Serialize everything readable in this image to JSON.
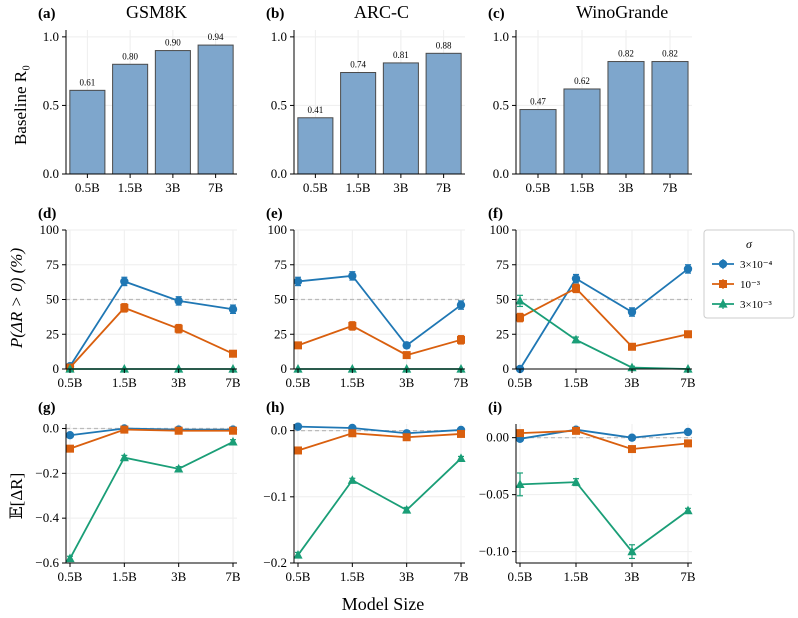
{
  "figure": {
    "xlabel": "Model Size",
    "row_ylabels": [
      "Baseline R₀",
      "P(ΔR > 0) (%)",
      "𝔼[ΔR]"
    ]
  },
  "legend": {
    "title": "σ",
    "entries": [
      "3×10⁻⁴",
      "10⁻³",
      "3×10⁻³"
    ]
  },
  "colors": {
    "bar": "#7ea6cc",
    "s0": "#1f77b4",
    "s1": "#d95f0e",
    "s2": "#1a9e77",
    "ref": "#bbbbbb"
  },
  "chart_data": [
    {
      "panel": "(a)",
      "title": "GSM8K",
      "type": "bar",
      "categories": [
        "0.5B",
        "1.5B",
        "3B",
        "7B"
      ],
      "values": [
        0.61,
        0.8,
        0.9,
        0.94
      ],
      "value_labels": [
        "0.61",
        "0.80",
        "0.90",
        "0.94"
      ],
      "ylim": [
        0,
        1.05
      ],
      "yticks": [
        0,
        0.5,
        1.0
      ],
      "ytick_labels": [
        "0.0",
        "0.5",
        "1.0"
      ]
    },
    {
      "panel": "(b)",
      "title": "ARC-C",
      "type": "bar",
      "categories": [
        "0.5B",
        "1.5B",
        "3B",
        "7B"
      ],
      "values": [
        0.41,
        0.74,
        0.81,
        0.88
      ],
      "value_labels": [
        "0.41",
        "0.74",
        "0.81",
        "0.88"
      ],
      "ylim": [
        0,
        1.05
      ],
      "yticks": [
        0,
        0.5,
        1.0
      ],
      "ytick_labels": [
        "0.0",
        "0.5",
        "1.0"
      ]
    },
    {
      "panel": "(c)",
      "title": "WinoGrande",
      "type": "bar",
      "categories": [
        "0.5B",
        "1.5B",
        "3B",
        "7B"
      ],
      "values": [
        0.47,
        0.62,
        0.82,
        0.82
      ],
      "value_labels": [
        "0.47",
        "0.62",
        "0.82",
        "0.82"
      ],
      "ylim": [
        0,
        1.05
      ],
      "yticks": [
        0,
        0.5,
        1.0
      ],
      "ytick_labels": [
        "0.0",
        "0.5",
        "1.0"
      ]
    },
    {
      "panel": "(d)",
      "type": "line",
      "categories": [
        "0.5B",
        "1.5B",
        "3B",
        "7B"
      ],
      "ylim": [
        0,
        100
      ],
      "yticks": [
        0,
        25,
        50,
        75,
        100
      ],
      "ytick_labels": [
        "0",
        "25",
        "50",
        "75",
        "100"
      ],
      "hline": 50,
      "series": [
        {
          "name": "3×10⁻⁴",
          "values": [
            2,
            63,
            49,
            43
          ],
          "err": [
            1,
            3,
            3,
            3
          ]
        },
        {
          "name": "10⁻³",
          "values": [
            1,
            44,
            29,
            11
          ],
          "err": [
            1,
            3,
            3,
            2
          ]
        },
        {
          "name": "3×10⁻³",
          "values": [
            0,
            0,
            0,
            0
          ],
          "err": [
            0,
            0,
            0,
            0
          ]
        }
      ]
    },
    {
      "panel": "(e)",
      "type": "line",
      "categories": [
        "0.5B",
        "1.5B",
        "3B",
        "7B"
      ],
      "ylim": [
        0,
        100
      ],
      "yticks": [
        0,
        25,
        50,
        75,
        100
      ],
      "ytick_labels": [
        "0",
        "25",
        "50",
        "75",
        "100"
      ],
      "hline": 50,
      "series": [
        {
          "name": "3×10⁻⁴",
          "values": [
            63,
            67,
            17,
            46
          ],
          "err": [
            3,
            3,
            2,
            3
          ]
        },
        {
          "name": "10⁻³",
          "values": [
            17,
            31,
            10,
            21
          ],
          "err": [
            2,
            3,
            2,
            3
          ]
        },
        {
          "name": "3×10⁻³",
          "values": [
            0,
            0,
            0,
            0
          ],
          "err": [
            0,
            0,
            0,
            0
          ]
        }
      ]
    },
    {
      "panel": "(f)",
      "type": "line",
      "categories": [
        "0.5B",
        "1.5B",
        "3B",
        "7B"
      ],
      "ylim": [
        0,
        100
      ],
      "yticks": [
        0,
        25,
        50,
        75,
        100
      ],
      "ytick_labels": [
        "0",
        "25",
        "50",
        "75",
        "100"
      ],
      "hline": 50,
      "series": [
        {
          "name": "3×10⁻⁴",
          "values": [
            0,
            65,
            41,
            72
          ],
          "err": [
            0,
            3,
            3,
            3
          ]
        },
        {
          "name": "10⁻³",
          "values": [
            37,
            58,
            16,
            25
          ],
          "err": [
            3,
            3,
            2,
            2
          ]
        },
        {
          "name": "3×10⁻³",
          "values": [
            49,
            21,
            1,
            0
          ],
          "err": [
            4,
            2,
            1,
            0
          ]
        }
      ]
    },
    {
      "panel": "(g)",
      "type": "line",
      "categories": [
        "0.5B",
        "1.5B",
        "3B",
        "7B"
      ],
      "ylim": [
        -0.6,
        0.02
      ],
      "yticks": [
        -0.6,
        -0.4,
        -0.2,
        0.0
      ],
      "ytick_labels": [
        "−0.6",
        "−0.4",
        "−0.2",
        "0.0"
      ],
      "hline": 0,
      "series": [
        {
          "name": "3×10⁻⁴",
          "values": [
            -0.03,
            0.0,
            -0.005,
            -0.005
          ],
          "err": [
            0.005,
            0.005,
            0.005,
            0.005
          ]
        },
        {
          "name": "10⁻³",
          "values": [
            -0.09,
            -0.005,
            -0.01,
            -0.01
          ],
          "err": [
            0.005,
            0.005,
            0.005,
            0.005
          ]
        },
        {
          "name": "3×10⁻³",
          "values": [
            -0.58,
            -0.13,
            -0.18,
            -0.06
          ],
          "err": [
            0.01,
            0.01,
            0.01,
            0.01
          ]
        }
      ]
    },
    {
      "panel": "(h)",
      "type": "line",
      "categories": [
        "0.5B",
        "1.5B",
        "3B",
        "7B"
      ],
      "ylim": [
        -0.2,
        0.01
      ],
      "yticks": [
        -0.2,
        -0.1,
        0.0
      ],
      "ytick_labels": [
        "−0.2",
        "−0.1",
        "0.0"
      ],
      "hline": 0,
      "series": [
        {
          "name": "3×10⁻⁴",
          "values": [
            0.006,
            0.004,
            -0.004,
            0.001
          ],
          "err": [
            0.001,
            0.001,
            0.001,
            0.001
          ]
        },
        {
          "name": "10⁻³",
          "values": [
            -0.03,
            -0.004,
            -0.01,
            -0.005
          ],
          "err": [
            0.002,
            0.002,
            0.002,
            0.002
          ]
        },
        {
          "name": "3×10⁻³",
          "values": [
            -0.188,
            -0.075,
            -0.12,
            -0.042
          ],
          "err": [
            0.004,
            0.003,
            0.004,
            0.003
          ]
        }
      ]
    },
    {
      "panel": "(i)",
      "type": "line",
      "categories": [
        "0.5B",
        "1.5B",
        "3B",
        "7B"
      ],
      "ylim": [
        -0.11,
        0.012
      ],
      "yticks": [
        -0.1,
        -0.05,
        0.0
      ],
      "ytick_labels": [
        "−0.10",
        "−0.05",
        "0.00"
      ],
      "hline": 0,
      "series": [
        {
          "name": "3×10⁻⁴",
          "values": [
            -0.001,
            0.007,
            0.0,
            0.005
          ],
          "err": [
            0.001,
            0.001,
            0.001,
            0.001
          ]
        },
        {
          "name": "10⁻³",
          "values": [
            0.004,
            0.006,
            -0.01,
            -0.005
          ],
          "err": [
            0.001,
            0.001,
            0.001,
            0.001
          ]
        },
        {
          "name": "3×10⁻³",
          "values": [
            -0.041,
            -0.039,
            -0.1,
            -0.064
          ],
          "err": [
            0.01,
            0.003,
            0.006,
            0.002
          ]
        }
      ]
    }
  ]
}
